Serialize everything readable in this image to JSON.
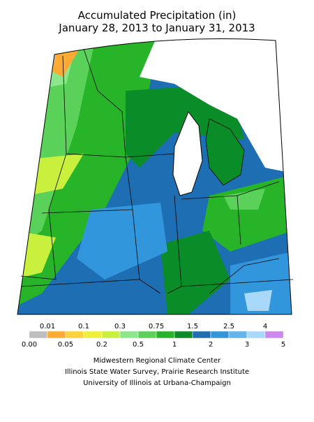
{
  "header": {
    "title_line1": "Accumulated Precipitation (in)",
    "title_line2": "January 28, 2013 to January 31, 2013"
  },
  "legend": {
    "colors": [
      "#bebebe",
      "#ffaa33",
      "#ffd23c",
      "#f0f03c",
      "#c8f03c",
      "#8ce68c",
      "#5ad25a",
      "#28b428",
      "#0a8c28",
      "#1e6eb4",
      "#3296dc",
      "#64b4f0",
      "#a8d8fa",
      "#cc88ee"
    ],
    "labels_top": [
      "0.01",
      "0.1",
      "0.3",
      "0.75",
      "1.5",
      "2.5",
      "4"
    ],
    "labels_bottom": [
      "0.00",
      "0.05",
      "0.2",
      "0.5",
      "1",
      "2",
      "3",
      "5"
    ]
  },
  "credits": [
    "Midwestern Regional Climate Center",
    "Illinois State Water Survey, Prairie Research Institute",
    "University of Illinois at Urbana-Champaign"
  ]
}
